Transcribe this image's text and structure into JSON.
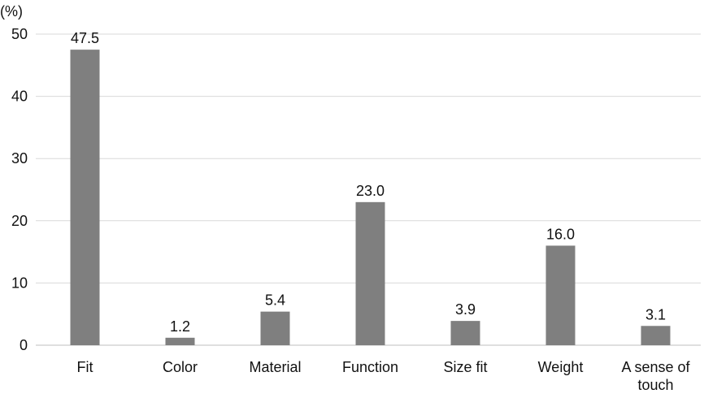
{
  "chart_data": {
    "type": "bar",
    "title": "",
    "xlabel": "",
    "ylabel": "(%)",
    "categories": [
      "Fit",
      "Color",
      "Material",
      "Function",
      "Size fit",
      "Weight",
      "A sense of touch"
    ],
    "values": [
      47.5,
      1.2,
      5.4,
      23.0,
      3.9,
      16.0,
      3.1
    ],
    "value_labels": [
      "47.5",
      "1.2",
      "5.4",
      "23.0",
      "3.9",
      "16.0",
      "3.1"
    ],
    "ylim": [
      0,
      50
    ],
    "yticks": [
      0,
      10,
      20,
      30,
      40,
      50
    ],
    "grid": true,
    "legend": "none",
    "colors": {
      "bar": "#7f7f7f",
      "grid": "#d9d9d9",
      "axis": "#bfbfbf",
      "text": "#111111"
    }
  }
}
